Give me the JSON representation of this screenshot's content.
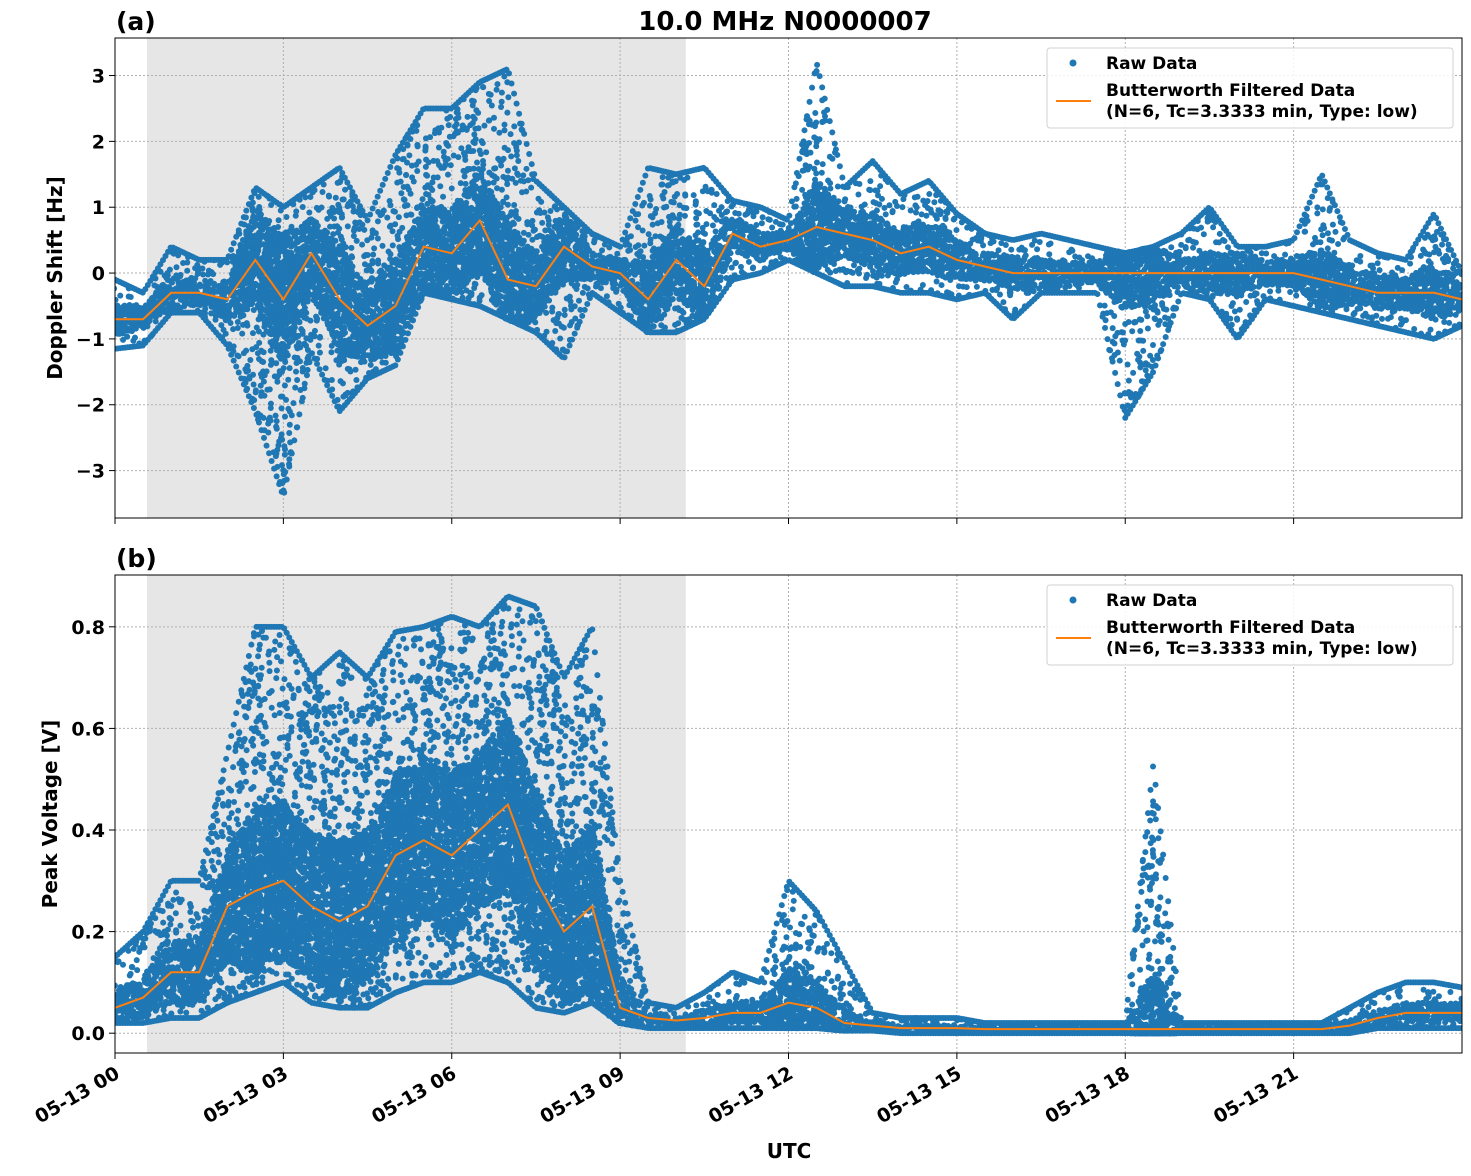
{
  "figure_title": "10.0 MHz N0000007",
  "chart_data": [
    {
      "panel_label": "(a)",
      "type": "scatter+line",
      "xlabel": "",
      "ylabel": "Doppler Shift [Hz]",
      "x_unit": "hours UTC since 05-13 00",
      "xlim": [
        0,
        24
      ],
      "ylim": [
        -3.72,
        3.57
      ],
      "yticks": [
        -3,
        -2,
        -1,
        0,
        1,
        2,
        3
      ],
      "ytick_labels": [
        "−3",
        "−2",
        "−1",
        "0",
        "1",
        "2",
        "3"
      ],
      "grid": true,
      "legend_position": "top-right",
      "shaded_interval": [
        0.57,
        10.17
      ],
      "x": [
        0,
        0.5,
        1,
        1.5,
        2,
        2.5,
        3,
        3.5,
        4,
        4.5,
        5,
        5.5,
        6,
        6.5,
        7,
        7.5,
        8,
        8.5,
        9,
        9.5,
        10,
        10.5,
        11,
        11.5,
        12,
        12.5,
        13,
        13.5,
        14,
        14.5,
        15,
        15.5,
        16,
        16.5,
        17,
        17.5,
        18,
        18.5,
        19,
        19.5,
        20,
        20.5,
        21,
        21.5,
        22,
        22.5,
        23,
        23.5,
        24
      ],
      "series": [
        {
          "name": "Raw Data",
          "kind": "scatter",
          "color": "#1f77b4",
          "min": [
            -1.15,
            -1.1,
            -0.6,
            -0.6,
            -1.1,
            -2.1,
            -3.4,
            -1.2,
            -2.1,
            -1.6,
            -1.4,
            -0.3,
            -0.4,
            -0.5,
            -0.7,
            -0.9,
            -1.3,
            -0.3,
            -0.6,
            -0.9,
            -0.9,
            -0.7,
            -0.1,
            0.0,
            0.2,
            0.0,
            -0.2,
            -0.2,
            -0.3,
            -0.3,
            -0.4,
            -0.3,
            -0.7,
            -0.3,
            -0.3,
            -0.3,
            -2.2,
            -1.5,
            -0.3,
            -0.4,
            -1.0,
            -0.4,
            -0.5,
            -0.6,
            -0.7,
            -0.8,
            -0.9,
            -1.0,
            -0.8
          ],
          "max": [
            -0.1,
            -0.3,
            0.4,
            0.2,
            0.2,
            1.3,
            1.0,
            1.3,
            1.6,
            0.8,
            1.8,
            2.5,
            2.5,
            2.9,
            3.1,
            1.4,
            1.0,
            0.6,
            0.4,
            1.6,
            1.5,
            1.6,
            1.1,
            1.0,
            0.8,
            3.2,
            1.3,
            1.7,
            1.2,
            1.4,
            0.9,
            0.6,
            0.5,
            0.6,
            0.5,
            0.4,
            0.3,
            0.4,
            0.6,
            1.0,
            0.4,
            0.4,
            0.5,
            1.5,
            0.5,
            0.3,
            0.2,
            0.9,
            0.0
          ]
        },
        {
          "name": "Butterworth Filtered Data\n(N=6, Tc=3.3333 min, Type: low)",
          "kind": "line",
          "color": "#ff7f0e",
          "values": [
            -0.7,
            -0.7,
            -0.3,
            -0.3,
            -0.4,
            0.2,
            -0.4,
            0.3,
            -0.4,
            -0.8,
            -0.5,
            0.4,
            0.3,
            0.8,
            -0.1,
            -0.2,
            0.4,
            0.1,
            0.0,
            -0.4,
            0.2,
            -0.2,
            0.6,
            0.4,
            0.5,
            0.7,
            0.6,
            0.5,
            0.3,
            0.4,
            0.2,
            0.1,
            0.0,
            0.0,
            0.0,
            0.0,
            0.0,
            0.0,
            0.0,
            0.0,
            0.0,
            0.0,
            0.0,
            -0.1,
            -0.2,
            -0.3,
            -0.3,
            -0.3,
            -0.4
          ]
        }
      ],
      "legend": {
        "raw_label": "Raw Data",
        "filtered_label_1": "Butterworth Filtered Data",
        "filtered_label_2": "(N=6, Tc=3.3333 min, Type: low)"
      }
    },
    {
      "panel_label": "(b)",
      "type": "scatter+line",
      "xlabel": "UTC",
      "ylabel": "Peak Voltage [V]",
      "x_unit": "hours UTC since 05-13 00",
      "xlim": [
        0,
        24
      ],
      "ylim": [
        -0.039,
        0.902
      ],
      "yticks": [
        0,
        0.2,
        0.4,
        0.6,
        0.8
      ],
      "ytick_labels": [
        "0.0",
        "0.2",
        "0.4",
        "0.6",
        "0.8"
      ],
      "xticks": [
        0,
        3,
        6,
        9,
        12,
        15,
        18,
        21
      ],
      "xtick_labels": [
        "05-13 00",
        "05-13 03",
        "05-13 06",
        "05-13 09",
        "05-13 12",
        "05-13 15",
        "05-13 18",
        "05-13 21"
      ],
      "grid": true,
      "legend_position": "top-right",
      "shaded_interval": [
        0.57,
        10.17
      ],
      "x": [
        0,
        0.5,
        1,
        1.5,
        2,
        2.5,
        3,
        3.5,
        4,
        4.5,
        5,
        5.5,
        6,
        6.5,
        7,
        7.5,
        8,
        8.5,
        9,
        9.5,
        10,
        10.5,
        11,
        11.5,
        12,
        12.5,
        13,
        13.5,
        14,
        14.5,
        15,
        15.5,
        16,
        16.5,
        17,
        17.5,
        18,
        18.5,
        19,
        19.5,
        20,
        20.5,
        21,
        21.5,
        22,
        22.5,
        23,
        23.5,
        24
      ],
      "series": [
        {
          "name": "Raw Data",
          "kind": "scatter",
          "color": "#1f77b4",
          "min": [
            0.02,
            0.02,
            0.03,
            0.03,
            0.06,
            0.08,
            0.1,
            0.06,
            0.05,
            0.05,
            0.08,
            0.1,
            0.1,
            0.12,
            0.1,
            0.05,
            0.04,
            0.06,
            0.02,
            0.01,
            0.01,
            0.01,
            0.01,
            0.01,
            0.01,
            0.01,
            0.005,
            0.005,
            0,
            0,
            0,
            0,
            0,
            0,
            0,
            0,
            0,
            0,
            0,
            0,
            0,
            0,
            0,
            0,
            0,
            0.01,
            0.01,
            0.01,
            0.01
          ],
          "max": [
            0.15,
            0.2,
            0.3,
            0.3,
            0.55,
            0.8,
            0.8,
            0.7,
            0.75,
            0.7,
            0.79,
            0.8,
            0.82,
            0.8,
            0.86,
            0.84,
            0.7,
            0.8,
            0.3,
            0.06,
            0.05,
            0.08,
            0.12,
            0.1,
            0.3,
            0.24,
            0.14,
            0.04,
            0.03,
            0.03,
            0.03,
            0.02,
            0.02,
            0.02,
            0.02,
            0.02,
            0.02,
            0.53,
            0.02,
            0.02,
            0.02,
            0.02,
            0.02,
            0.02,
            0.05,
            0.08,
            0.1,
            0.1,
            0.09
          ]
        },
        {
          "name": "Butterworth Filtered Data\n(N=6, Tc=3.3333 min, Type: low)",
          "kind": "line",
          "color": "#ff7f0e",
          "values": [
            0.05,
            0.07,
            0.12,
            0.12,
            0.25,
            0.28,
            0.3,
            0.25,
            0.22,
            0.25,
            0.35,
            0.38,
            0.35,
            0.4,
            0.45,
            0.3,
            0.2,
            0.25,
            0.05,
            0.03,
            0.025,
            0.03,
            0.04,
            0.04,
            0.06,
            0.05,
            0.02,
            0.015,
            0.01,
            0.01,
            0.01,
            0.008,
            0.008,
            0.008,
            0.008,
            0.008,
            0.008,
            0.008,
            0.008,
            0.008,
            0.008,
            0.008,
            0.008,
            0.008,
            0.015,
            0.03,
            0.04,
            0.04,
            0.04
          ]
        }
      ],
      "legend": {
        "raw_label": "Raw Data",
        "filtered_label_1": "Butterworth Filtered Data",
        "filtered_label_2": "(N=6, Tc=3.3333 min, Type: low)"
      }
    }
  ]
}
